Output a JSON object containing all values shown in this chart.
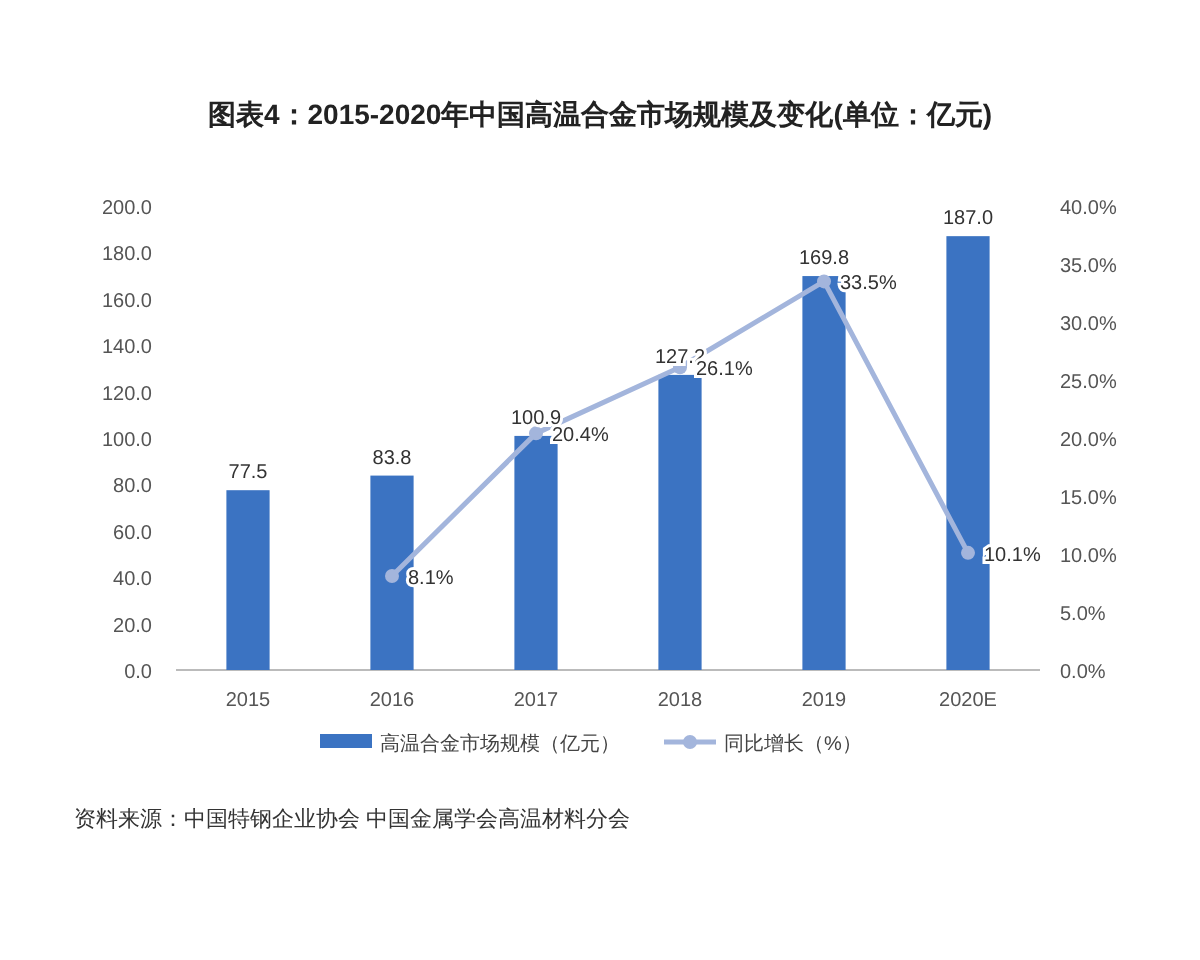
{
  "chart_data": {
    "type": "bar",
    "title": "图表4：2015-2020年中国高温合金市场规模及变化(单位：亿元)",
    "categories": [
      "2015",
      "2016",
      "2017",
      "2018",
      "2019",
      "2020E"
    ],
    "series": [
      {
        "name": "高温合金市场规模（亿元）",
        "color": "#3b73c2",
        "values": [
          77.5,
          83.8,
          100.9,
          127.2,
          169.8,
          187.0
        ],
        "value_labels": [
          "77.5",
          "83.8",
          "100.9",
          "127.2",
          "169.8",
          "187.0"
        ]
      },
      {
        "name": "同比增长（%）",
        "type": "line",
        "axis": "y2",
        "color": "#a3b5dc",
        "marker": "circle",
        "values": [
          null,
          8.1,
          20.4,
          26.1,
          33.5,
          10.1
        ],
        "value_labels": [
          null,
          "8.1%",
          "20.4%",
          "26.1%",
          "33.5%",
          "10.1%"
        ]
      }
    ],
    "ylim": [
      0,
      200
    ],
    "yticks": [
      {
        "value": 0,
        "label": "0.0"
      },
      {
        "value": 20,
        "label": "20.0"
      },
      {
        "value": 40,
        "label": "40.0"
      },
      {
        "value": 60,
        "label": "60.0"
      },
      {
        "value": 80,
        "label": "80.0"
      },
      {
        "value": 100,
        "label": "100.0"
      },
      {
        "value": 120,
        "label": "120.0"
      },
      {
        "value": 140,
        "label": "140.0"
      },
      {
        "value": 160,
        "label": "160.0"
      },
      {
        "value": 180,
        "label": "180.0"
      },
      {
        "value": 200,
        "label": "200.0"
      }
    ],
    "y2lim": [
      0,
      40
    ],
    "y2ticks": [
      {
        "value": 0,
        "label": "0.0%"
      },
      {
        "value": 5,
        "label": "5.0%"
      },
      {
        "value": 10,
        "label": "10.0%"
      },
      {
        "value": 15,
        "label": "15.0%"
      },
      {
        "value": 20,
        "label": "20.0%"
      },
      {
        "value": 25,
        "label": "25.0%"
      },
      {
        "value": 30,
        "label": "30.0%"
      },
      {
        "value": 35,
        "label": "35.0%"
      },
      {
        "value": 40,
        "label": "40.0%"
      }
    ],
    "legend": "bottom",
    "annotations": [
      "资料来源：中国特钢企业协会 中国金属学会高温材料分会"
    ]
  }
}
